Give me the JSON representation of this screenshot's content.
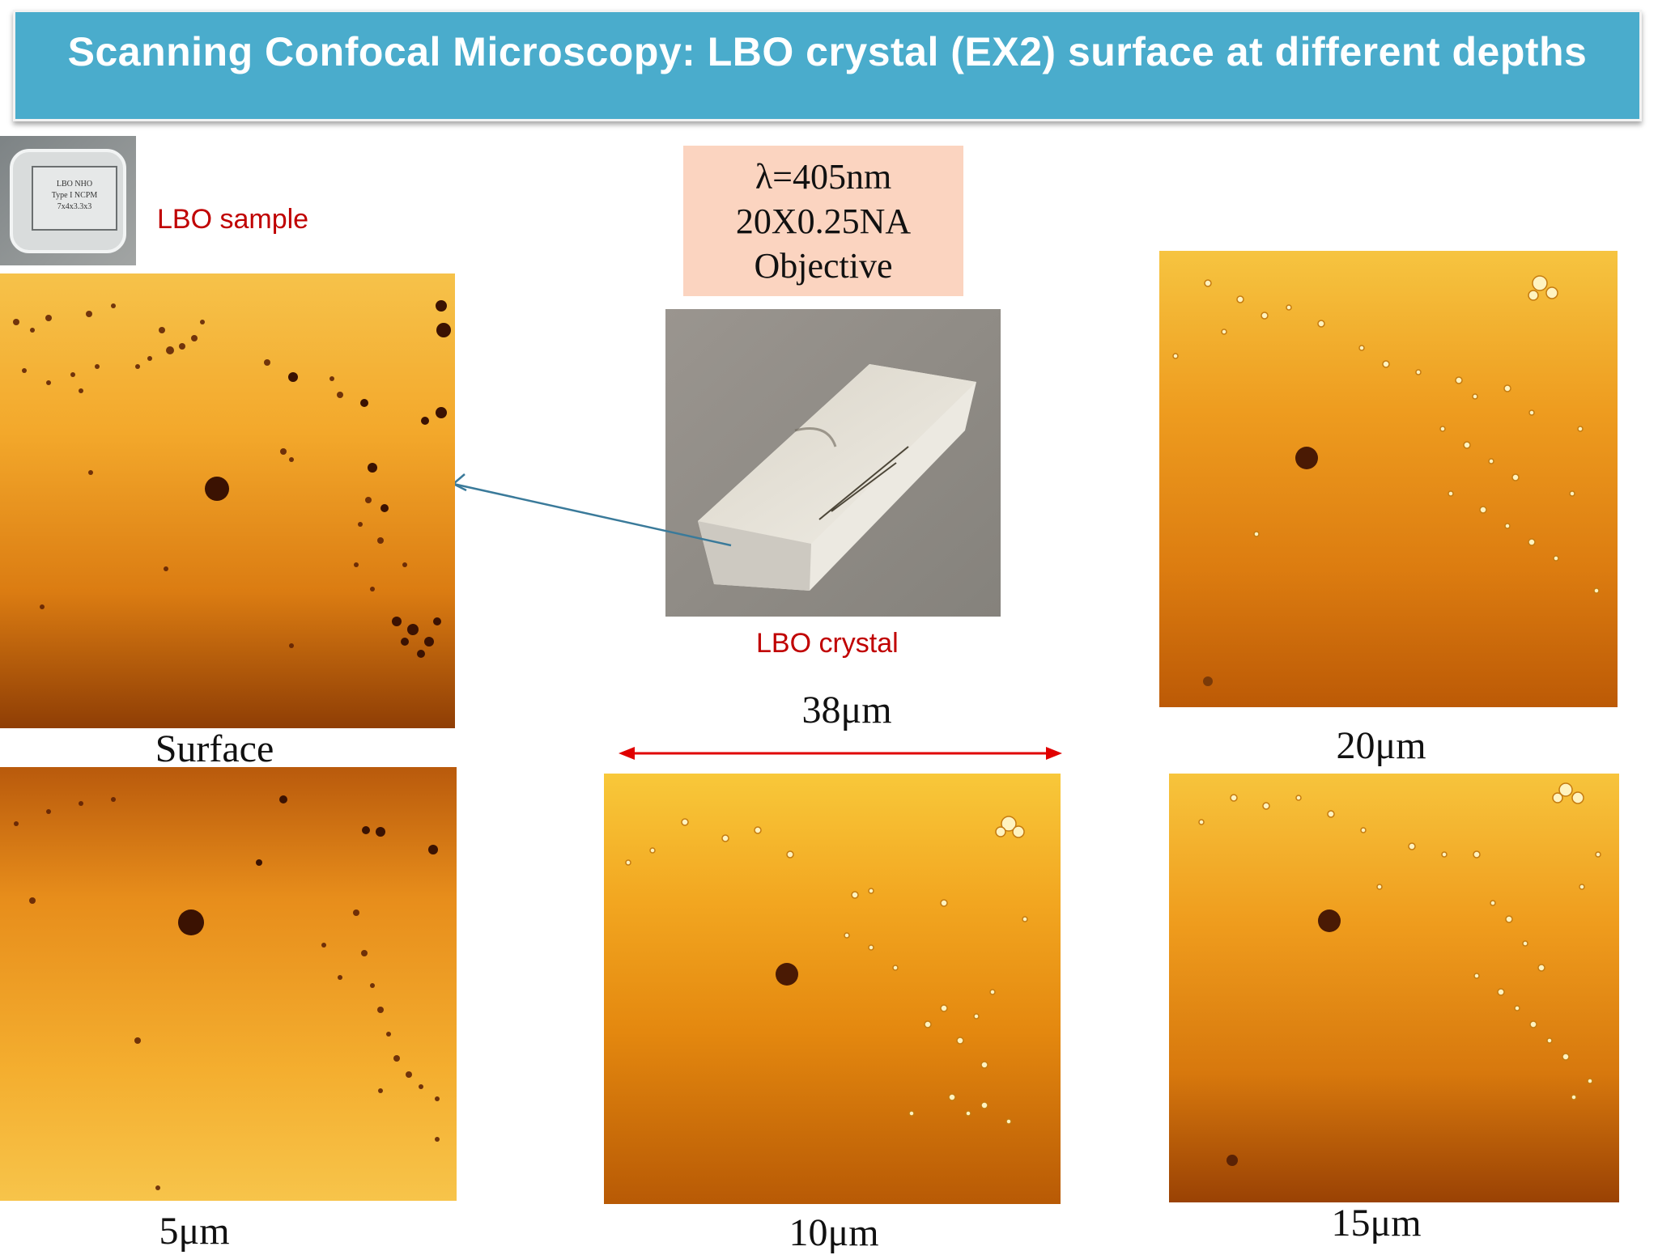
{
  "title": "Scanning Confocal Microscopy: LBO crystal (EX2) surface at different depths",
  "sample_photo": {
    "label": "LBO sample",
    "lettering": [
      "LBO  NHO",
      "Type I  NCPM",
      "7x4x3.3x3"
    ]
  },
  "parameters": {
    "line1": "λ=405nm",
    "line2": "20X0.25NA",
    "line3": "Objective"
  },
  "crystal_photo": {
    "label": "LBO crystal"
  },
  "scale": {
    "label": "38μm",
    "color": "#e00000"
  },
  "images": {
    "surface": {
      "caption": "Surface"
    },
    "depth5": {
      "caption": "5μm"
    },
    "depth10": {
      "caption": "10μm"
    },
    "depth15": {
      "caption": "15μm"
    },
    "depth20": {
      "caption": "20μm"
    }
  },
  "colors": {
    "banner": "#4aaccc",
    "label_red": "#c00000",
    "param_box": "#fbd4c0",
    "arrow": "#3a7a9a"
  }
}
